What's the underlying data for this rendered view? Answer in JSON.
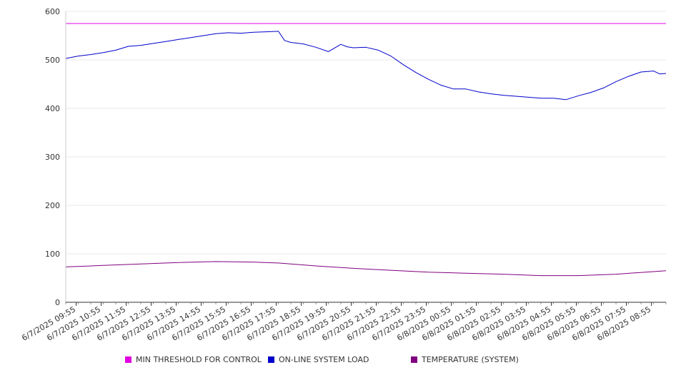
{
  "chart_data": {
    "type": "line",
    "ylim": [
      0,
      600
    ],
    "yticks": [
      0,
      100,
      200,
      300,
      400,
      500,
      600
    ],
    "grid": true,
    "legend_position": "bottom",
    "xtick_labels": [
      "6/7/2025 09:55",
      "6/7/2025 10:55",
      "6/7/2025 11:55",
      "6/7/2025 12:55",
      "6/7/2025 13:55",
      "6/7/2025 14:55",
      "6/7/2025 15:55",
      "6/7/2025 16:55",
      "6/7/2025 17:55",
      "6/7/2025 18:55",
      "6/7/2025 19:55",
      "6/7/2025 20:55",
      "6/7/2025 21:55",
      "6/7/2025 22:55",
      "6/7/2025 23:55",
      "6/8/2025 00:55",
      "6/8/2025 01:55",
      "6/8/2025 02:55",
      "6/8/2025 03:55",
      "6/8/2025 04:55",
      "6/8/2025 05:55",
      "6/8/2025 06:55",
      "6/8/2025 07:55",
      "6/8/2025 08:55"
    ],
    "x_start": "6/7/2025 09:30",
    "x_end": "6/8/2025 09:30",
    "series": [
      {
        "name": "MIN THRESHOLD FOR CONTROL",
        "color": "#e000e0",
        "x": [
          "6/7/2025 09:30",
          "6/8/2025 09:30"
        ],
        "values": [
          575,
          575
        ]
      },
      {
        "name": "ON-LINE SYSTEM LOAD",
        "color": "#0000cc",
        "x": [
          "6/7/2025 09:30",
          "6/7/2025 10:00",
          "6/7/2025 10:30",
          "6/7/2025 11:00",
          "6/7/2025 11:30",
          "6/7/2025 12:00",
          "6/7/2025 12:30",
          "6/7/2025 13:00",
          "6/7/2025 13:30",
          "6/7/2025 14:00",
          "6/7/2025 14:30",
          "6/7/2025 15:00",
          "6/7/2025 15:30",
          "6/7/2025 16:00",
          "6/7/2025 16:30",
          "6/7/2025 17:00",
          "6/7/2025 17:30",
          "6/7/2025 18:00",
          "6/7/2025 18:15",
          "6/7/2025 18:30",
          "6/7/2025 19:00",
          "6/7/2025 19:30",
          "6/7/2025 20:00",
          "6/7/2025 20:30",
          "6/7/2025 20:45",
          "6/7/2025 21:00",
          "6/7/2025 21:30",
          "6/7/2025 22:00",
          "6/7/2025 22:30",
          "6/7/2025 23:00",
          "6/7/2025 23:30",
          "6/8/2025 00:00",
          "6/8/2025 00:30",
          "6/8/2025 01:00",
          "6/8/2025 01:30",
          "6/8/2025 02:00",
          "6/8/2025 02:30",
          "6/8/2025 03:00",
          "6/8/2025 03:30",
          "6/8/2025 04:00",
          "6/8/2025 04:30",
          "6/8/2025 05:00",
          "6/8/2025 05:30",
          "6/8/2025 06:00",
          "6/8/2025 06:30",
          "6/8/2025 07:00",
          "6/8/2025 07:30",
          "6/8/2025 08:00",
          "6/8/2025 08:30",
          "6/8/2025 09:00",
          "6/8/2025 09:15",
          "6/8/2025 09:30"
        ],
        "values": [
          503,
          508,
          511,
          515,
          520,
          528,
          530,
          534,
          538,
          542,
          546,
          550,
          554,
          556,
          555,
          557,
          558,
          559,
          540,
          536,
          533,
          526,
          517,
          532,
          527,
          525,
          526,
          520,
          508,
          490,
          474,
          460,
          448,
          440,
          440,
          434,
          430,
          427,
          425,
          423,
          421,
          421,
          418,
          426,
          433,
          442,
          455,
          466,
          475,
          477,
          471,
          472
        ]
      },
      {
        "name": "TEMPERATURE (SYSTEM)",
        "color": "#800080",
        "x": [
          "6/7/2025 09:30",
          "6/7/2025 11:00",
          "6/7/2025 12:30",
          "6/7/2025 14:00",
          "6/7/2025 15:30",
          "6/7/2025 17:00",
          "6/7/2025 18:00",
          "6/7/2025 19:30",
          "6/7/2025 21:00",
          "6/7/2025 22:30",
          "6/8/2025 00:00",
          "6/8/2025 01:30",
          "6/8/2025 03:00",
          "6/8/2025 04:30",
          "6/8/2025 06:00",
          "6/8/2025 07:30",
          "6/8/2025 09:30"
        ],
        "values": [
          73,
          76,
          79,
          82,
          84,
          83,
          81,
          75,
          70,
          66,
          62,
          60,
          58,
          55,
          55,
          58,
          65
        ]
      }
    ]
  }
}
